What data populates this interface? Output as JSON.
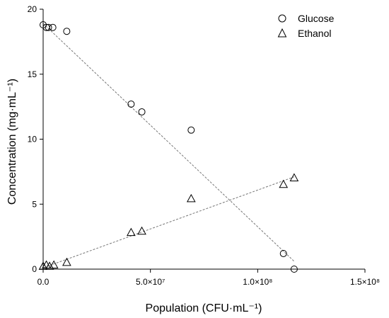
{
  "chart_data": {
    "type": "scatter",
    "xlabel": "Population (CFU·mL⁻¹)",
    "ylabel": "Concentration (mg·mL⁻¹)",
    "xlim": [
      0,
      150000000
    ],
    "ylim": [
      0,
      20
    ],
    "xticks": [
      0,
      50000000,
      100000000,
      150000000
    ],
    "xtick_labels": [
      "0.0",
      "5.0×10⁷",
      "1.0×10⁸",
      "1.5×10⁸"
    ],
    "yticks": [
      0,
      5,
      10,
      15,
      20
    ],
    "ytick_labels": [
      "0",
      "5",
      "10",
      "15",
      "20"
    ],
    "grid": false,
    "legend_position": "top-right",
    "series": [
      {
        "name": "Glucose",
        "marker": "circle",
        "x": [
          0,
          1500000,
          2500000,
          4500000,
          11000000,
          41000000,
          46000000,
          69000000,
          112000000,
          117000000
        ],
        "y": [
          18.8,
          18.6,
          18.6,
          18.6,
          18.3,
          12.7,
          12.1,
          10.7,
          1.2,
          0.0
        ],
        "fit": {
          "x": [
            0,
            117000000
          ],
          "y": [
            18.9,
            0.6
          ]
        }
      },
      {
        "name": "Ethanol",
        "marker": "triangle",
        "x": [
          0,
          1500000,
          3000000,
          5000000,
          11000000,
          41000000,
          46000000,
          69000000,
          112000000,
          117000000
        ],
        "y": [
          0.2,
          0.3,
          0.2,
          0.3,
          0.5,
          2.8,
          2.9,
          5.4,
          6.5,
          7.0
        ],
        "fit": {
          "x": [
            0,
            117000000
          ],
          "y": [
            0.1,
            7.1
          ]
        }
      }
    ]
  }
}
